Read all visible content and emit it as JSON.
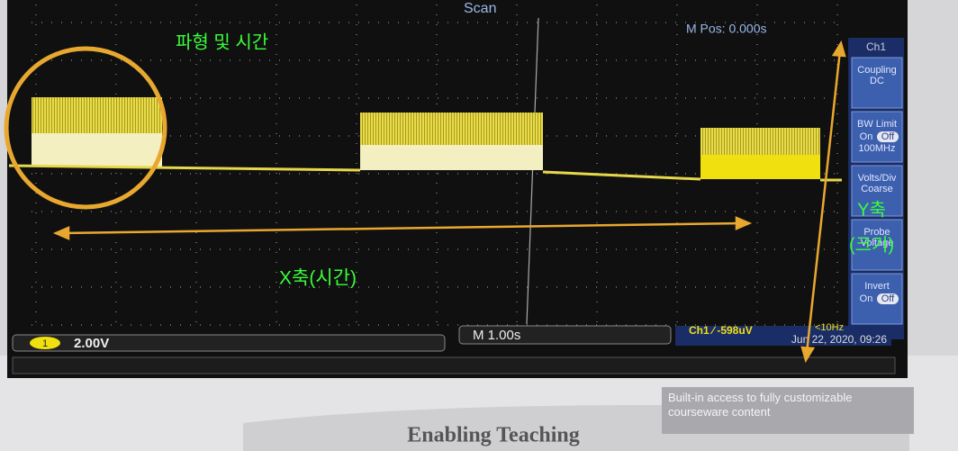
{
  "screen": {
    "mode": "Scan",
    "m_pos": "M Pos: 0.000s",
    "channel_badge": "1",
    "volts": "2.00V",
    "timebase": "M 1.00s",
    "trigger": "Ch1 ∕ -598uV",
    "freq": "<10Hz",
    "datetime": "Jun 22, 2020, 09:26"
  },
  "menu": {
    "title": "Ch1",
    "items": [
      {
        "lines": [
          "Coupling",
          "DC"
        ]
      },
      {
        "lines": [
          "BW Limit",
          "On",
          "Off",
          "100MHz"
        ]
      },
      {
        "lines": [
          "Volts/Div",
          "Coarse"
        ]
      },
      {
        "lines": [
          "Probe",
          "Voltage"
        ]
      },
      {
        "lines": [
          "Invert",
          "On",
          "Off"
        ]
      }
    ]
  },
  "annotations": {
    "waveform_time": "파형 및 시간",
    "x_axis": "X축(시간)",
    "y_axis": "Y축",
    "y_axis_sub": "(크기)"
  },
  "bezel": {
    "tagline": "Built-in access to fully customizable courseware content",
    "brand": "Enabling Teaching"
  }
}
